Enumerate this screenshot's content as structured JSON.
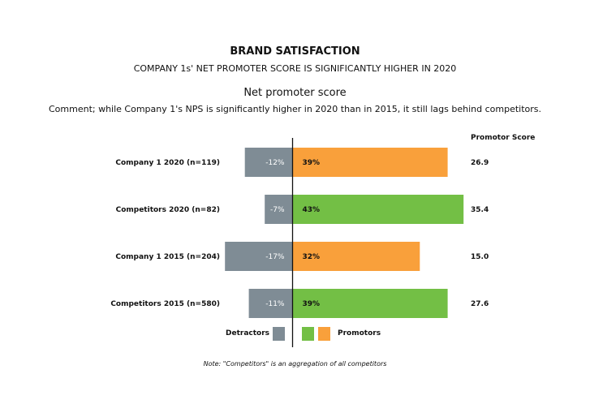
{
  "header": {
    "title": "BRAND SATISFACTION",
    "subtitle": "COMPANY 1s' NET PROMOTER SCORE IS SIGNIFICANTLY HIGHER IN 2020",
    "chart_title": "Net promoter score",
    "comment": "Comment; while Company 1's NPS is significantly higher in 2020 than in 2015, it still lags behind competitors.",
    "score_header": "Promotor Score"
  },
  "legend": {
    "detractors_label": "Detractors",
    "promotors_label": "Promotors"
  },
  "note": "Note: \"Competitors\" is an aggregation of all competitors",
  "colors": {
    "detractor": "#7f8c95",
    "promotor_company": "#f9a03b",
    "promotor_competitor": "#73bf45",
    "axis": "#111111"
  },
  "chart_data": {
    "type": "bar",
    "orientation": "horizontal-diverging",
    "categories": [
      "Company 1 2020 (n=119)",
      "Competitors 2020 (n=82)",
      "Company 1 2015 (n=204)",
      "Competitors 2015 (n=580)"
    ],
    "series": [
      {
        "name": "Detractors",
        "values": [
          -12,
          -7,
          -17,
          -11
        ],
        "labels": [
          "-12%",
          "-7%",
          "-17%",
          "-11%"
        ]
      },
      {
        "name": "Promotors",
        "values": [
          39,
          43,
          32,
          39
        ],
        "labels": [
          "39%",
          "43%",
          "32%",
          "39%"
        ]
      }
    ],
    "promotor_score": [
      "26.9",
      "35.4",
      "15.0",
      "27.6"
    ],
    "bar_group": [
      "company",
      "competitor",
      "company",
      "competitor"
    ]
  }
}
